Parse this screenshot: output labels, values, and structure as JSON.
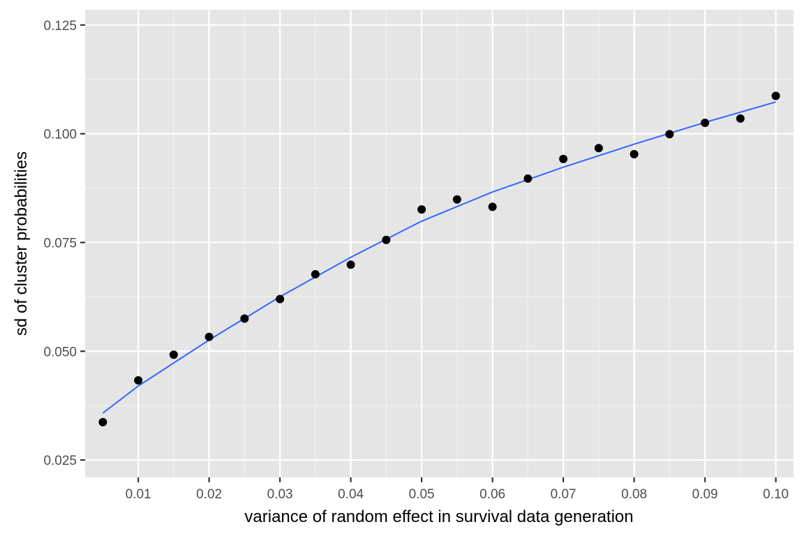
{
  "chart_data": {
    "type": "scatter",
    "title": "",
    "xlabel": "variance of random effect in survival data generation",
    "ylabel": "sd of cluster probabilities",
    "xlim": [
      0.0025,
      0.1025
    ],
    "ylim": [
      0.021,
      0.1285
    ],
    "x_ticks": [
      0.01,
      0.02,
      0.03,
      0.04,
      0.05,
      0.06,
      0.07,
      0.08,
      0.09,
      0.1
    ],
    "x_tick_labels": [
      "0.01",
      "0.02",
      "0.03",
      "0.04",
      "0.05",
      "0.06",
      "0.07",
      "0.08",
      "0.09",
      "0.10"
    ],
    "y_ticks": [
      0.025,
      0.05,
      0.075,
      0.1,
      0.125
    ],
    "y_tick_labels": [
      "0.025",
      "0.050",
      "0.075",
      "0.100",
      "0.125"
    ],
    "grid": true,
    "legend": "none",
    "series": [
      {
        "kind": "points",
        "x": [
          0.005,
          0.01,
          0.015,
          0.02,
          0.025,
          0.03,
          0.035,
          0.04,
          0.045,
          0.05,
          0.055,
          0.06,
          0.065,
          0.07,
          0.075,
          0.08,
          0.085,
          0.09,
          0.095,
          0.1
        ],
        "y": [
          0.0337,
          0.0433,
          0.0492,
          0.0533,
          0.0575,
          0.062,
          0.0677,
          0.0699,
          0.0756,
          0.0826,
          0.0849,
          0.0832,
          0.0897,
          0.0942,
          0.0967,
          0.0953,
          0.0999,
          0.1025,
          0.1035,
          0.1087
        ],
        "color": "#000000"
      },
      {
        "kind": "smooth-line",
        "x": [
          0.005,
          0.01,
          0.02,
          0.03,
          0.04,
          0.05,
          0.06,
          0.07,
          0.08,
          0.09,
          0.1
        ],
        "y": [
          0.0358,
          0.042,
          0.0526,
          0.0625,
          0.0716,
          0.0799,
          0.0866,
          0.0923,
          0.0976,
          0.1026,
          0.1073
        ],
        "color": "#3366ff"
      }
    ],
    "colors": {
      "panel_background": "#e5e5e5",
      "grid_major": "#ffffff",
      "grid_minor": "#f2f2f2",
      "tick_mark": "#333333",
      "tick_label": "#4d4d4d"
    }
  }
}
